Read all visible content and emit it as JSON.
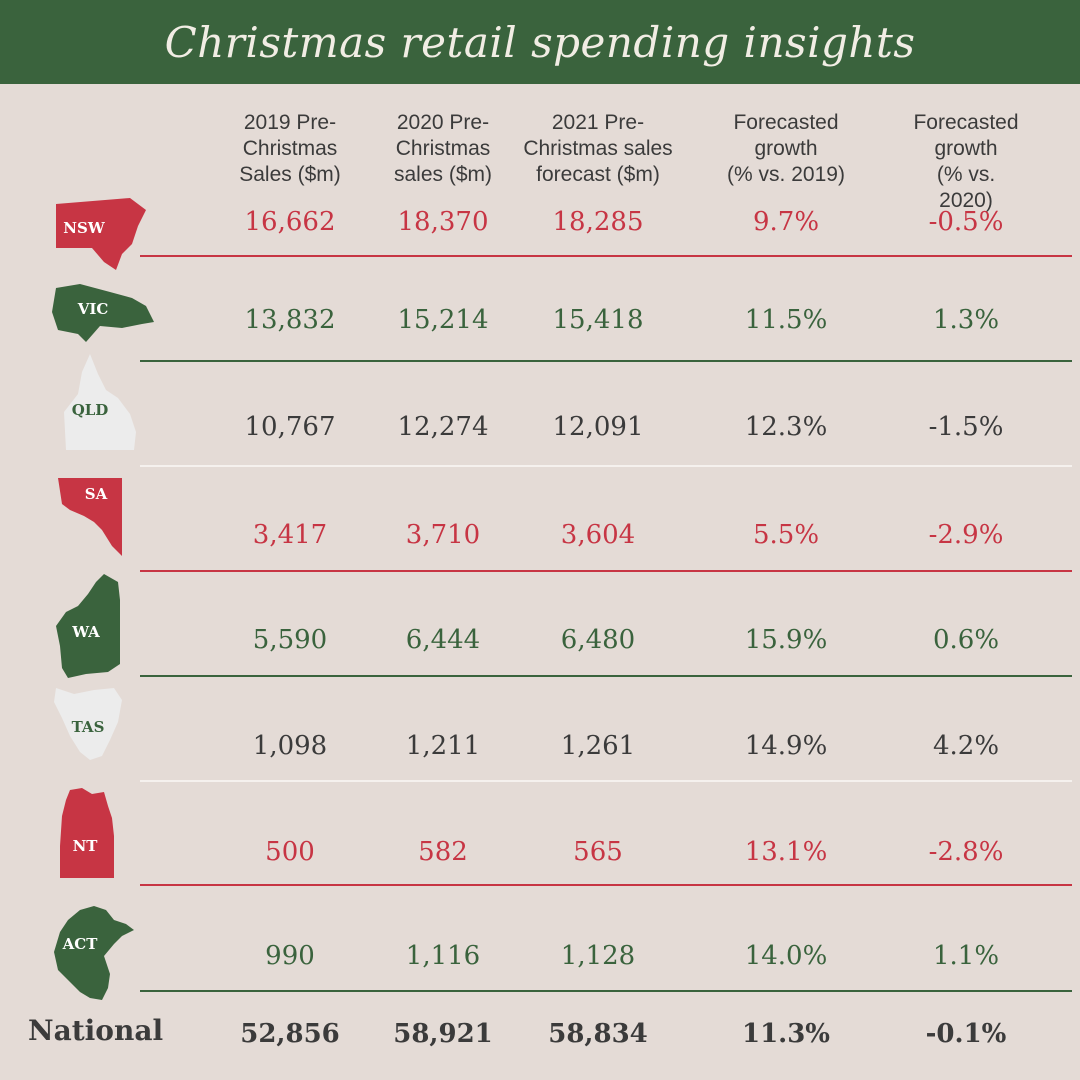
{
  "title": "Christmas retail spending insights",
  "colors": {
    "red": "#c73544",
    "green": "#3a633d",
    "white": "#ececec",
    "dark": "#3b3b3b",
    "background": "#e4dbd6"
  },
  "columns": [
    "2019 Pre-\nChristmas\nSales ($m)",
    "2020 Pre-\nChristmas\nsales ($m)",
    "2021 Pre-\nChristmas sales\nforecast ($m)",
    "Forecasted\ngrowth\n(% vs. 2019)",
    "Forecasted\ngrowth\n(% vs. 2020)"
  ],
  "rows": [
    {
      "state": "NSW",
      "color": "red",
      "values": [
        "16,662",
        "18,370",
        "18,285",
        "9.7%",
        "-0.5%"
      ]
    },
    {
      "state": "VIC",
      "color": "green",
      "values": [
        "13,832",
        "15,214",
        "15,418",
        "11.5%",
        "1.3%"
      ]
    },
    {
      "state": "QLD",
      "color": "white",
      "values": [
        "10,767",
        "12,274",
        "12,091",
        "12.3%",
        "-1.5%"
      ]
    },
    {
      "state": "SA",
      "color": "red",
      "values": [
        "3,417",
        "3,710",
        "3,604",
        "5.5%",
        "-2.9%"
      ]
    },
    {
      "state": "WA",
      "color": "green",
      "values": [
        "5,590",
        "6,444",
        "6,480",
        "15.9%",
        "0.6%"
      ]
    },
    {
      "state": "TAS",
      "color": "white",
      "values": [
        "1,098",
        "1,211",
        "1,261",
        "14.9%",
        "4.2%"
      ]
    },
    {
      "state": "NT",
      "color": "red",
      "values": [
        "500",
        "582",
        "565",
        "13.1%",
        "-2.8%"
      ]
    },
    {
      "state": "ACT",
      "color": "green",
      "values": [
        "990",
        "1,116",
        "1,128",
        "14.0%",
        "1.1%"
      ]
    }
  ],
  "national": {
    "label": "National",
    "values": [
      "52,856",
      "58,921",
      "58,834",
      "11.3%",
      "-0.1%"
    ]
  }
}
